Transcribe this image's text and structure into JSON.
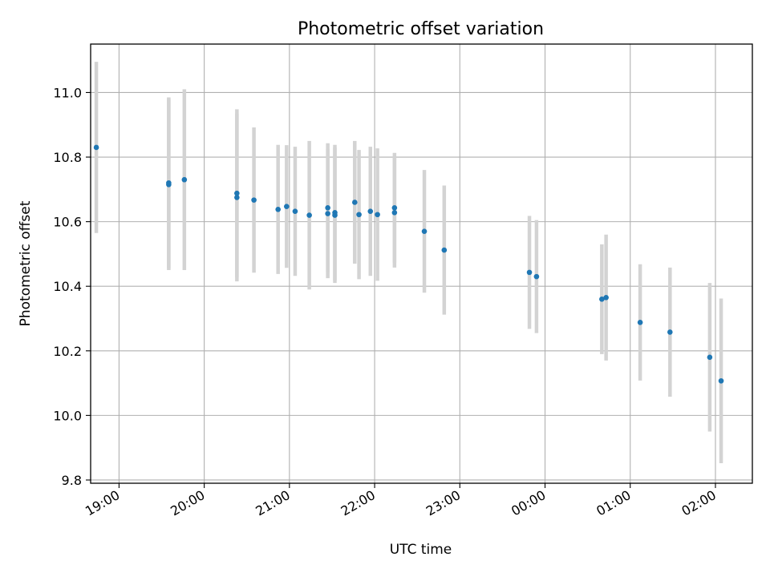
{
  "chart_data": {
    "type": "scatter",
    "title": "Photometric offset variation",
    "xlabel": "UTC time",
    "ylabel": "Photometric offset",
    "grid": true,
    "x_axis": "time",
    "x_ticks": [
      "19:00",
      "20:00",
      "21:00",
      "22:00",
      "23:00",
      "00:00",
      "01:00",
      "02:00"
    ],
    "y_ticks": [
      "9.8",
      "10.0",
      "10.2",
      "10.4",
      "10.6",
      "10.8",
      "11.0"
    ],
    "ylim": [
      9.79,
      11.15
    ],
    "xlim": [
      "18:40",
      "02:26"
    ],
    "colors": {
      "points": "#1f77b4",
      "errorbars": "#d3d3d3",
      "grid": "#b0b0b0"
    },
    "series": [
      {
        "points": [
          {
            "x": "18:44",
            "y": 10.83,
            "err": 0.265
          },
          {
            "x": "19:35",
            "y": 10.715,
            "err": 0.265
          },
          {
            "x": "19:35",
            "y": 10.72,
            "err": 0.265
          },
          {
            "x": "19:46",
            "y": 10.73,
            "err": 0.28
          },
          {
            "x": "20:23",
            "y": 10.688,
            "err": 0.26
          },
          {
            "x": "20:23",
            "y": 10.675,
            "err": 0.26
          },
          {
            "x": "20:35",
            "y": 10.667,
            "err": 0.225
          },
          {
            "x": "20:52",
            "y": 10.638,
            "err": 0.2
          },
          {
            "x": "20:58",
            "y": 10.647,
            "err": 0.19
          },
          {
            "x": "21:04",
            "y": 10.632,
            "err": 0.2
          },
          {
            "x": "21:14",
            "y": 10.62,
            "err": 0.23
          },
          {
            "x": "21:27",
            "y": 10.643,
            "err": 0.2
          },
          {
            "x": "21:27",
            "y": 10.625,
            "err": 0.2
          },
          {
            "x": "21:32",
            "y": 10.628,
            "err": 0.21
          },
          {
            "x": "21:32",
            "y": 10.62,
            "err": 0.21
          },
          {
            "x": "21:46",
            "y": 10.66,
            "err": 0.19
          },
          {
            "x": "21:49",
            "y": 10.622,
            "err": 0.2
          },
          {
            "x": "21:57",
            "y": 10.632,
            "err": 0.2
          },
          {
            "x": "22:02",
            "y": 10.622,
            "err": 0.205
          },
          {
            "x": "22:14",
            "y": 10.643,
            "err": 0.17
          },
          {
            "x": "22:14",
            "y": 10.628,
            "err": 0.17
          },
          {
            "x": "22:35",
            "y": 10.57,
            "err": 0.19
          },
          {
            "x": "22:49",
            "y": 10.512,
            "err": 0.2
          },
          {
            "x": "23:49",
            "y": 10.443,
            "err": 0.175
          },
          {
            "x": "23:54",
            "y": 10.43,
            "err": 0.175
          },
          {
            "x": "00:40",
            "y": 10.36,
            "err": 0.17
          },
          {
            "x": "00:43",
            "y": 10.365,
            "err": 0.195
          },
          {
            "x": "01:07",
            "y": 10.288,
            "err": 0.18
          },
          {
            "x": "01:28",
            "y": 10.258,
            "err": 0.2
          },
          {
            "x": "01:56",
            "y": 10.18,
            "err": 0.23
          },
          {
            "x": "02:04",
            "y": 10.107,
            "err": 0.255
          }
        ]
      }
    ]
  }
}
